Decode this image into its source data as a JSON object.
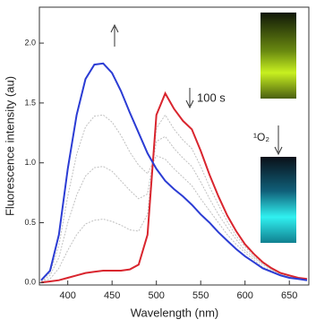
{
  "chart_data": {
    "type": "line",
    "x_label": "Wavelength (nm)",
    "y_label": "Fluorescence intensity (au)",
    "annotations": [
      "100 s",
      "¹O₂"
    ],
    "xlim": [
      368,
      672
    ],
    "ylim": [
      -0.02,
      2.3
    ],
    "xticks": [
      400,
      450,
      500,
      550,
      600,
      650
    ],
    "yticks": [
      {
        "value": 0,
        "label": "0.0"
      },
      0.5,
      {
        "value": 1,
        "label": "1.0"
      },
      1.5,
      {
        "value": 2,
        "label": "2.0"
      }
    ],
    "x": [
      370,
      380,
      390,
      400,
      410,
      420,
      430,
      440,
      450,
      460,
      470,
      480,
      490,
      500,
      510,
      520,
      530,
      540,
      550,
      560,
      570,
      580,
      590,
      600,
      610,
      620,
      630,
      640,
      650,
      660,
      670
    ],
    "series": [
      {
        "color": "#c0c0c0",
        "values": [
          0.01,
          0.03,
          0.12,
          0.27,
          0.4,
          0.49,
          0.52,
          0.53,
          0.51,
          0.48,
          0.44,
          0.43,
          0.57,
          1.29,
          1.4,
          1.28,
          1.19,
          1.12,
          0.97,
          0.8,
          0.65,
          0.51,
          0.39,
          0.3,
          0.22,
          0.16,
          0.11,
          0.08,
          0.06,
          0.04,
          0.03
        ]
      },
      {
        "color": "#c0c0c0",
        "values": [
          0.01,
          0.06,
          0.21,
          0.5,
          0.73,
          0.89,
          0.96,
          0.97,
          0.93,
          0.85,
          0.77,
          0.7,
          0.74,
          1.18,
          1.22,
          1.12,
          1.04,
          0.97,
          0.84,
          0.7,
          0.57,
          0.46,
          0.36,
          0.27,
          0.21,
          0.15,
          0.11,
          0.07,
          0.05,
          0.04,
          0.03
        ]
      },
      {
        "color": "#c0c0c0",
        "values": [
          0.02,
          0.08,
          0.31,
          0.72,
          1.07,
          1.3,
          1.39,
          1.4,
          1.34,
          1.23,
          1.09,
          0.98,
          0.91,
          1.06,
          1.03,
          0.95,
          0.88,
          0.81,
          0.7,
          0.6,
          0.5,
          0.4,
          0.32,
          0.25,
          0.19,
          0.13,
          0.1,
          0.07,
          0.05,
          0.03,
          0.02
        ]
      },
      {
        "color": "#d9252e",
        "values": [
          0,
          0.01,
          0.02,
          0.04,
          0.06,
          0.08,
          0.09,
          0.1,
          0.1,
          0.1,
          0.11,
          0.15,
          0.4,
          1.4,
          1.58,
          1.45,
          1.35,
          1.28,
          1.1,
          0.9,
          0.72,
          0.56,
          0.43,
          0.32,
          0.24,
          0.17,
          0.12,
          0.08,
          0.06,
          0.04,
          0.03
        ]
      },
      {
        "color": "#2b3cd4",
        "values": [
          0.02,
          0.1,
          0.4,
          0.95,
          1.4,
          1.7,
          1.82,
          1.83,
          1.75,
          1.6,
          1.42,
          1.25,
          1.08,
          0.95,
          0.85,
          0.78,
          0.72,
          0.65,
          0.57,
          0.5,
          0.42,
          0.35,
          0.28,
          0.22,
          0.17,
          0.12,
          0.09,
          0.06,
          0.04,
          0.03,
          0.02
        ]
      }
    ]
  }
}
